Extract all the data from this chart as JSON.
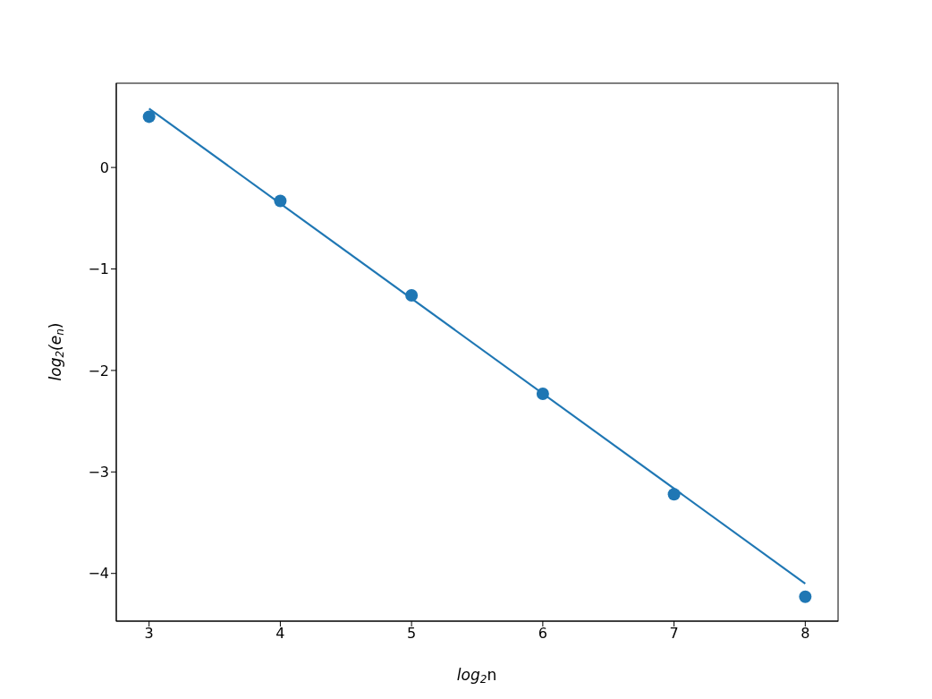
{
  "chart_data": {
    "type": "scatter",
    "xlabel": "log$_{2}$n",
    "ylabel": "log$_{2}$(e$_{n}$)",
    "xlim": [
      2.75,
      8.25
    ],
    "xticks": [
      3,
      4,
      5,
      6,
      7,
      8
    ],
    "ylim": [
      -4.47,
      0.83
    ],
    "yticks": [
      {
        "value": -4,
        "label": "−4"
      },
      {
        "value": -3,
        "label": "−3"
      },
      {
        "value": -2,
        "label": "−2"
      },
      {
        "value": -1,
        "label": "−1"
      },
      0
    ],
    "grid": false,
    "legend": false,
    "series": [
      {
        "color": "#1f77b4",
        "marker": "circle",
        "x": [
          3,
          4,
          5,
          6,
          7,
          8
        ],
        "values": [
          0.5,
          -0.33,
          -1.26,
          -2.23,
          -3.22,
          -4.23
        ]
      },
      {
        "type": "line",
        "color": "#1f77b4",
        "marker": "none",
        "line_style": "solid",
        "x": [
          3,
          8
        ],
        "values": [
          0.58,
          -4.1
        ]
      }
    ]
  }
}
